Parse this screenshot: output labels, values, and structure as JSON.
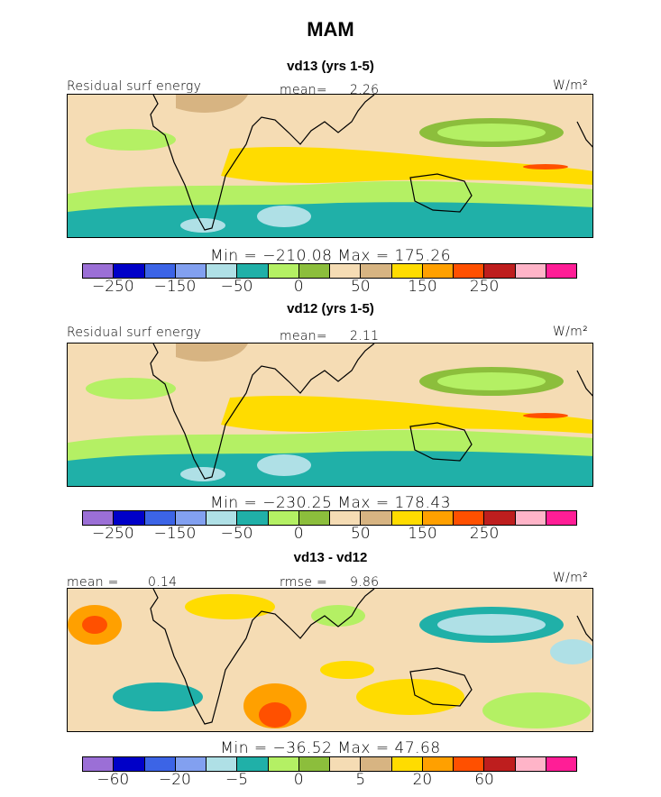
{
  "figure": {
    "title": "MAM",
    "units": "W/m²"
  },
  "chart_data": [
    {
      "type": "heatmap",
      "title": "vd13 (yrs 1-5)",
      "field": "Residual surf energy",
      "stats": {
        "mean_label": "mean=",
        "mean": "2.26",
        "minmax": "Min = −210.08 Max = 175.26"
      },
      "levels": [
        -300,
        -250,
        -200,
        -150,
        -100,
        -50,
        -25,
        0,
        25,
        50,
        100,
        150,
        200,
        250,
        300
      ],
      "colorbar_labels": [
        "−250",
        "−150",
        "−50",
        "0",
        "50",
        "150",
        "250"
      ],
      "colorbar_label_positions": [
        1,
        3,
        5,
        7,
        9,
        11,
        13
      ]
    },
    {
      "type": "heatmap",
      "title": "vd12 (yrs 1-5)",
      "field": "Residual surf energy",
      "stats": {
        "mean_label": "mean=",
        "mean": "2.11",
        "minmax": "Min = −230.25 Max = 178.43"
      },
      "levels": [
        -300,
        -250,
        -200,
        -150,
        -100,
        -50,
        -25,
        0,
        25,
        50,
        100,
        150,
        200,
        250,
        300
      ],
      "colorbar_labels": [
        "−250",
        "−150",
        "−50",
        "0",
        "50",
        "150",
        "250"
      ],
      "colorbar_label_positions": [
        1,
        3,
        5,
        7,
        9,
        11,
        13
      ]
    },
    {
      "type": "heatmap",
      "title": "vd13 - vd12",
      "stats": {
        "mean_label": "mean =",
        "mean": "0.14",
        "rmse_label": "rmse =",
        "rmse": "9.86",
        "minmax": "Min = −36.52 Max = 47.68"
      },
      "levels": [
        -80,
        -60,
        -40,
        -20,
        -10,
        -5,
        -2,
        0,
        2,
        5,
        10,
        20,
        40,
        60,
        80
      ],
      "colorbar_labels": [
        "−60",
        "−20",
        "−5",
        "0",
        "5",
        "20",
        "60"
      ],
      "colorbar_label_positions": [
        1,
        3,
        5,
        7,
        9,
        11,
        13
      ]
    }
  ],
  "colormap": [
    "#9b6fd6",
    "#0000c8",
    "#3c64e6",
    "#82a0f0",
    "#afe0e6",
    "#20b0a8",
    "#b4f064",
    "#8cbe3c",
    "#f5dcb4",
    "#d7b482",
    "#ffdc00",
    "#ffa000",
    "#ff5000",
    "#be1e1e",
    "#ffb4c8",
    "#ff1e96"
  ]
}
